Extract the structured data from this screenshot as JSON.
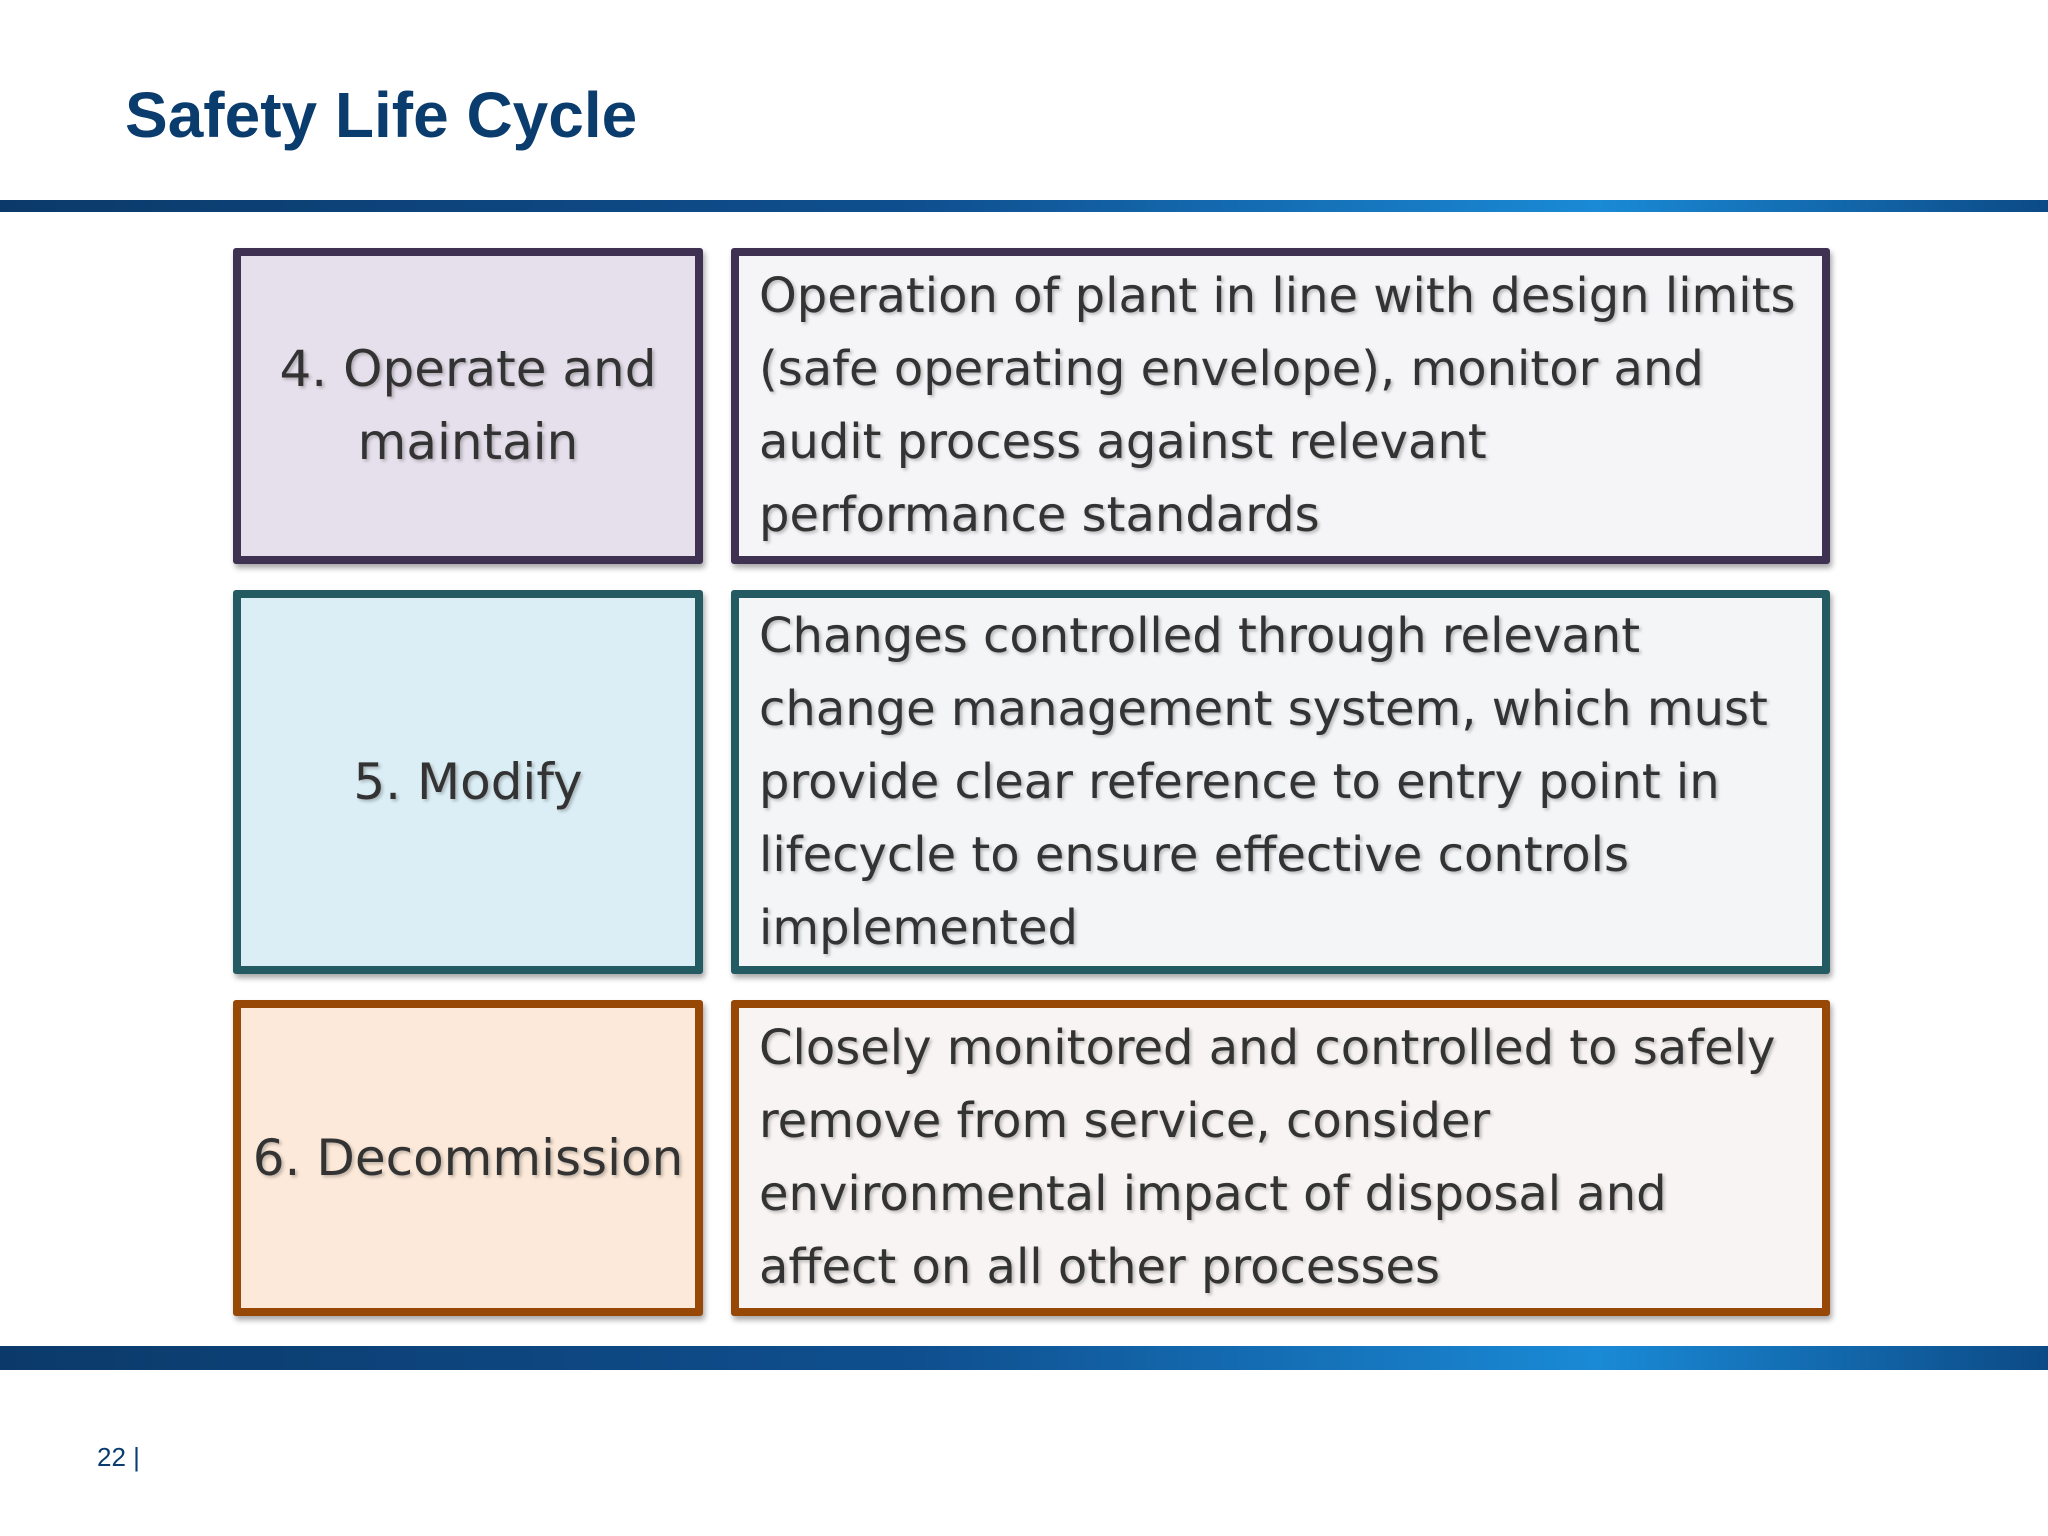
{
  "slide": {
    "title": "Safety Life Cycle",
    "page_number": "22 |"
  },
  "stages": [
    {
      "label": "4. Operate and maintain",
      "description": "Operation of plant in line with design limits (safe operating envelope), monitor and audit process against relevant performance standards"
    },
    {
      "label": "5. Modify",
      "description": "Changes controlled through relevant change management system, which must provide clear reference to entry point in lifecycle to ensure effective controls implemented"
    },
    {
      "label": "6. Decommission",
      "description": "Closely monitored and controlled to safely remove from service, consider environmental impact of disposal and affect on all other processes"
    }
  ],
  "colors": {
    "title": "#0b3c6e",
    "stage_4_border": "#3f3151",
    "stage_4_fill": "#e6e0ec",
    "stage_5_border": "#245a62",
    "stage_5_fill": "#dbeef5",
    "stage_6_border": "#974806",
    "stage_6_fill": "#fce9d9"
  }
}
